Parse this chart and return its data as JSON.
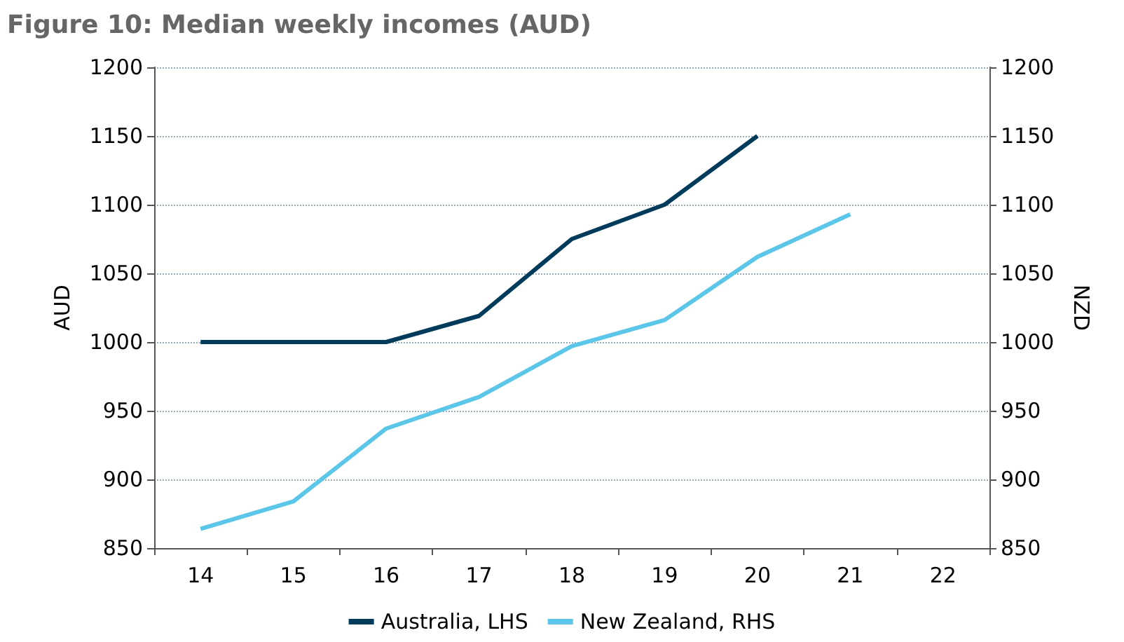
{
  "chart_data": {
    "type": "line",
    "title": "Figure 10: Median weekly incomes (AUD)",
    "ylabel": "AUD",
    "y2label": "NZD",
    "categories": [
      "14",
      "15",
      "16",
      "17",
      "18",
      "19",
      "20",
      "21",
      "22"
    ],
    "series": [
      {
        "name": "Australia, LHS",
        "color": "#003b5c",
        "values": [
          1000,
          1000,
          1000,
          1019,
          1075,
          1100,
          1150,
          null,
          null
        ]
      },
      {
        "name": "New Zealand, RHS",
        "color": "#5bc6e8",
        "axis": "y2",
        "values": [
          864,
          884,
          937,
          960,
          997,
          1016,
          1062,
          1093,
          null
        ]
      }
    ],
    "ylim": [
      850,
      1200
    ],
    "yticks": [
      850,
      900,
      950,
      1000,
      1050,
      1100,
      1150,
      1200
    ],
    "y2lim": [
      850,
      1200
    ],
    "y2ticks": [
      850,
      900,
      950,
      1000,
      1050,
      1100,
      1150,
      1200
    ],
    "grid": "y",
    "legend": "bottom",
    "marker": "none",
    "line_style": "solid"
  }
}
